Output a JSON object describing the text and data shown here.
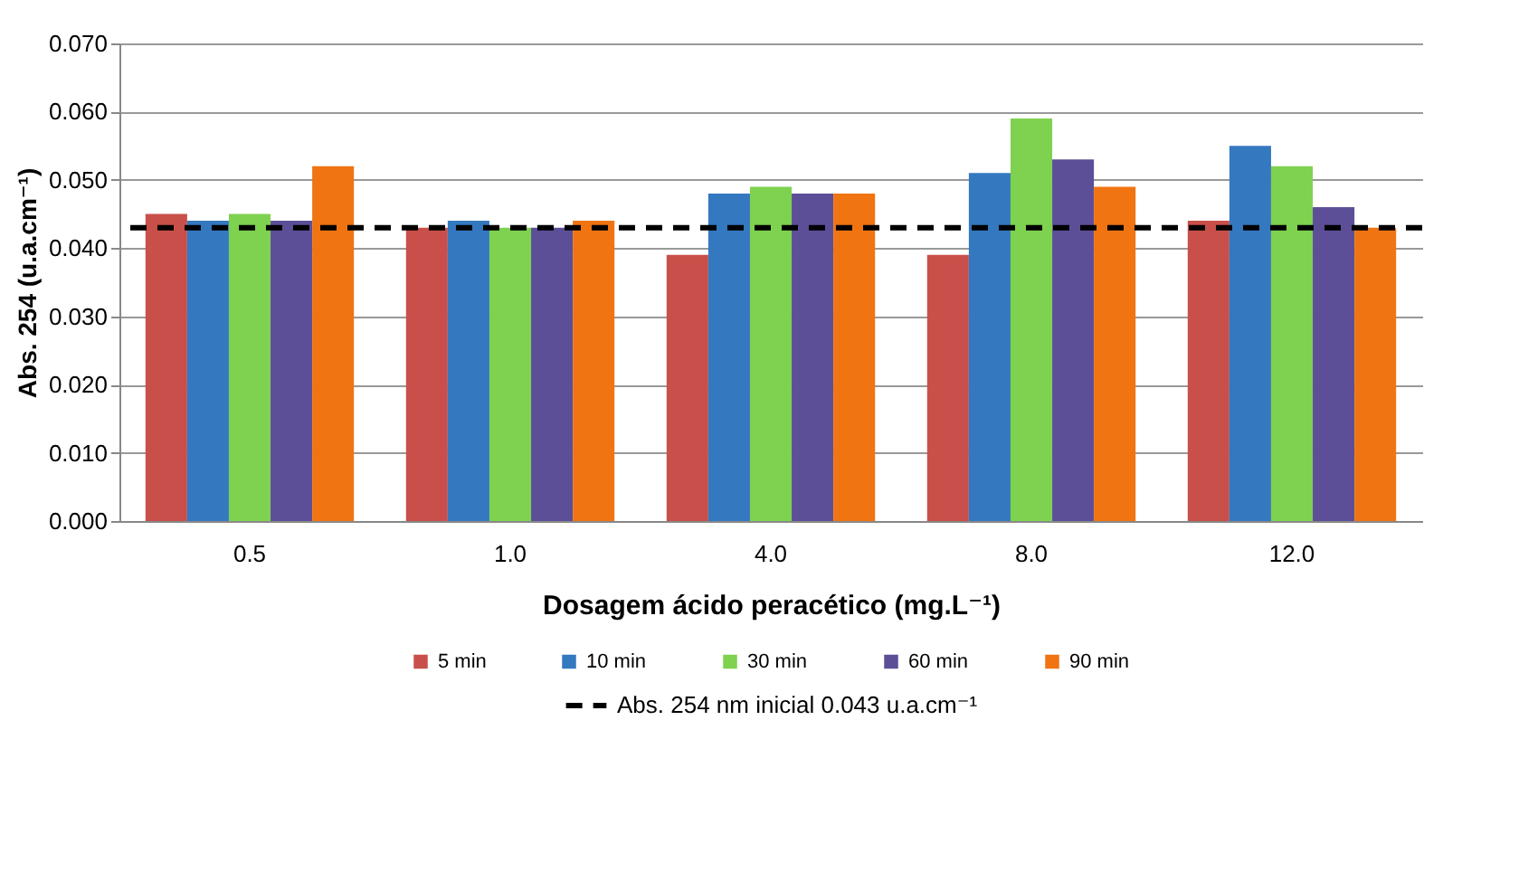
{
  "chart_data": {
    "type": "bar",
    "xlabel": "Dosagem ácido peracético (mg.L⁻¹)",
    "ylabel": "Abs. 254 (u.a.cm⁻¹)",
    "categories": [
      "0.5",
      "1.0",
      "4.0",
      "8.0",
      "12.0"
    ],
    "series": [
      {
        "name": "5 min",
        "color": "#c9504a",
        "values": [
          0.045,
          0.043,
          0.039,
          0.039,
          0.044
        ]
      },
      {
        "name": "10 min",
        "color": "#3478c0",
        "values": [
          0.044,
          0.044,
          0.048,
          0.051,
          0.055
        ]
      },
      {
        "name": "30 min",
        "color": "#7ed24f",
        "values": [
          0.045,
          0.043,
          0.049,
          0.059,
          0.052
        ]
      },
      {
        "name": "60 min",
        "color": "#5c4f98",
        "values": [
          0.044,
          0.043,
          0.048,
          0.053,
          0.046
        ]
      },
      {
        "name": "90 min",
        "color": "#f07412",
        "values": [
          0.052,
          0.044,
          0.048,
          0.049,
          0.043
        ]
      }
    ],
    "ylim": [
      0,
      0.07
    ],
    "yticks": [
      {
        "value": 0,
        "label": "0.000"
      },
      {
        "value": 0.01,
        "label": "0.010"
      },
      {
        "value": 0.02,
        "label": "0.020"
      },
      {
        "value": 0.03,
        "label": "0.030"
      },
      {
        "value": 0.04,
        "label": "0.040"
      },
      {
        "value": 0.05,
        "label": "0.050"
      },
      {
        "value": 0.06,
        "label": "0.060"
      },
      {
        "value": 0.07,
        "label": "0.070"
      }
    ],
    "ref_lines": [
      {
        "axis": "y",
        "value": 0.043,
        "label": "Abs. 254 nm inicial 0.043 u.a.cm⁻¹",
        "color": "#000000",
        "line_style": "dashed"
      }
    ],
    "grid": "y",
    "legend": "bottom"
  }
}
